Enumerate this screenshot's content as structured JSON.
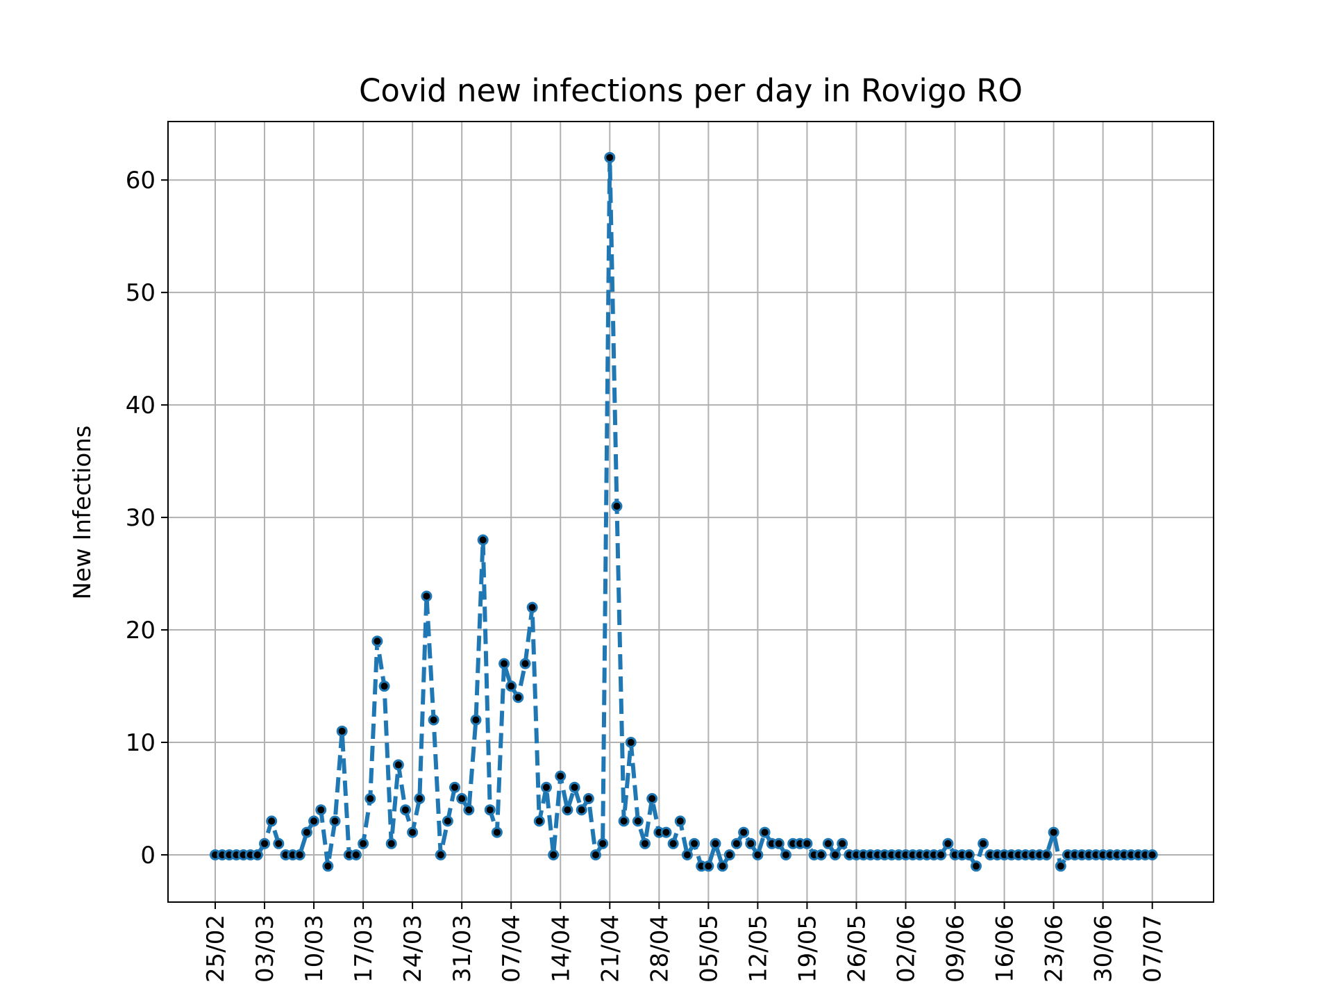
{
  "chart_data": {
    "type": "line",
    "title": "Covid new infections per day in Rovigo RO",
    "xlabel": "",
    "ylabel": "New Infections",
    "x_start_date": "2020-02-25",
    "x_tick_labels": [
      "25/02",
      "03/03",
      "10/03",
      "17/03",
      "24/03",
      "31/03",
      "07/04",
      "14/04",
      "21/04",
      "28/04",
      "05/05",
      "12/05",
      "19/05",
      "26/05",
      "02/06",
      "09/06",
      "16/06",
      "23/06",
      "30/06",
      "07/07"
    ],
    "xlim_days": [
      -6.7,
      141.7
    ],
    "ylim": [
      -4.2,
      65.2
    ],
    "y_ticks": [
      0,
      10,
      20,
      30,
      40,
      50,
      60
    ],
    "grid": true,
    "series": [
      {
        "name": "",
        "color": "#1f77b4",
        "line_style": "dashed",
        "marker": "circle",
        "values": [
          0,
          0,
          0,
          0,
          0,
          0,
          0,
          1,
          3,
          1,
          0,
          0,
          0,
          2,
          3,
          4,
          -1,
          3,
          11,
          0,
          0,
          1,
          5,
          19,
          15,
          1,
          8,
          4,
          2,
          5,
          23,
          12,
          0,
          3,
          6,
          5,
          4,
          12,
          28,
          4,
          2,
          17,
          15,
          14,
          17,
          22,
          3,
          6,
          0,
          7,
          4,
          6,
          4,
          5,
          0,
          1,
          62,
          31,
          3,
          10,
          3,
          1,
          5,
          2,
          2,
          1,
          3,
          0,
          1,
          -1,
          -1,
          1,
          -1,
          0,
          1,
          2,
          1,
          0,
          2,
          1,
          1,
          0,
          1,
          1,
          1,
          0,
          0,
          1,
          0,
          1,
          0,
          0,
          0,
          0,
          0,
          0,
          0,
          0,
          0,
          0,
          0,
          0,
          0,
          0,
          1,
          0,
          0,
          0,
          -1,
          1,
          0,
          0,
          0,
          0,
          0,
          0,
          0,
          0,
          0,
          2,
          -1,
          0,
          0,
          0,
          0,
          0,
          0,
          0,
          0,
          0,
          0,
          0,
          0,
          0
        ]
      }
    ]
  }
}
